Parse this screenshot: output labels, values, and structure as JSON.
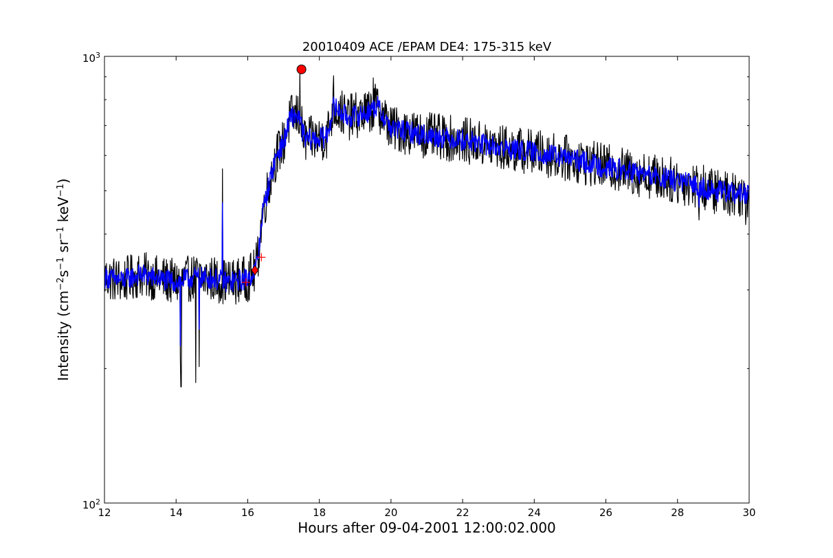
{
  "chart_data": {
    "type": "line",
    "title": "20010409 ACE /EPAM DE4: 175-315 keV",
    "xlabel": "Hours after 09-04-2001 12:00:02.000",
    "ylabel_parts": {
      "prefix": "Intensity (cm",
      "exp1": "−2",
      "mid1": "s",
      "exp2": "−1",
      "mid2": " sr",
      "exp3": "−1",
      "mid3": " keV",
      "exp4": "−1",
      "suffix": ")"
    },
    "xlim": [
      12,
      30
    ],
    "ylim": [
      100,
      1000
    ],
    "yscale": "log",
    "x_ticks": [
      12,
      14,
      16,
      18,
      20,
      22,
      24,
      26,
      28,
      30
    ],
    "x_tick_labels": [
      "12",
      "14",
      "16",
      "18",
      "20",
      "22",
      "24",
      "26",
      "28",
      "30"
    ],
    "y_tick_labels": [
      {
        "value": 1000,
        "base": "10",
        "exp": "3"
      },
      {
        "value": 100,
        "base": "10",
        "exp": "2"
      }
    ],
    "series": [
      {
        "color": "#000000",
        "noise": 0.075,
        "points": [
          [
            12.0,
            320
          ],
          [
            12.5,
            315
          ],
          [
            13.0,
            325
          ],
          [
            13.5,
            318
          ],
          [
            14.0,
            312
          ],
          [
            14.5,
            320
          ],
          [
            15.0,
            318
          ],
          [
            15.5,
            312
          ],
          [
            16.0,
            318
          ],
          [
            16.2,
            330
          ],
          [
            16.3,
            360
          ],
          [
            16.4,
            440
          ],
          [
            16.6,
            520
          ],
          [
            16.8,
            600
          ],
          [
            17.0,
            640
          ],
          [
            17.2,
            730
          ],
          [
            17.4,
            740
          ],
          [
            17.6,
            650
          ],
          [
            18.0,
            655
          ],
          [
            18.2,
            660
          ],
          [
            18.4,
            770
          ],
          [
            18.8,
            730
          ],
          [
            19.3,
            745
          ],
          [
            19.6,
            775
          ],
          [
            20.0,
            690
          ],
          [
            21.0,
            665
          ],
          [
            22.0,
            650
          ],
          [
            23.0,
            625
          ],
          [
            24.0,
            610
          ],
          [
            25.0,
            590
          ],
          [
            26.0,
            565
          ],
          [
            27.0,
            545
          ],
          [
            28.0,
            525
          ],
          [
            28.5,
            515
          ],
          [
            29.0,
            500
          ],
          [
            30.0,
            490
          ]
        ],
        "spikes": [
          {
            "x": 14.12,
            "y": 210
          },
          {
            "x": 14.14,
            "y": 182
          },
          {
            "x": 14.55,
            "y": 186
          },
          {
            "x": 14.65,
            "y": 202
          },
          {
            "x": 15.3,
            "y": 560
          },
          {
            "x": 17.45,
            "y": 930
          },
          {
            "x": 18.4,
            "y": 905
          },
          {
            "x": 19.5,
            "y": 895
          },
          {
            "x": 28.6,
            "y": 430
          },
          {
            "x": 29.9,
            "y": 420
          }
        ]
      },
      {
        "color": "#0000ff",
        "noise": 0.035,
        "points": [
          [
            12.0,
            320
          ],
          [
            12.5,
            315
          ],
          [
            13.0,
            325
          ],
          [
            13.5,
            318
          ],
          [
            14.0,
            312
          ],
          [
            14.5,
            320
          ],
          [
            15.0,
            318
          ],
          [
            15.5,
            312
          ],
          [
            16.0,
            318
          ],
          [
            16.2,
            330
          ],
          [
            16.3,
            360
          ],
          [
            16.4,
            440
          ],
          [
            16.6,
            520
          ],
          [
            16.8,
            600
          ],
          [
            17.0,
            640
          ],
          [
            17.2,
            730
          ],
          [
            17.4,
            740
          ],
          [
            17.6,
            650
          ],
          [
            18.0,
            655
          ],
          [
            18.2,
            660
          ],
          [
            18.4,
            770
          ],
          [
            18.8,
            730
          ],
          [
            19.3,
            745
          ],
          [
            19.6,
            775
          ],
          [
            20.0,
            690
          ],
          [
            21.0,
            665
          ],
          [
            22.0,
            650
          ],
          [
            23.0,
            625
          ],
          [
            24.0,
            610
          ],
          [
            25.0,
            590
          ],
          [
            26.0,
            565
          ],
          [
            27.0,
            545
          ],
          [
            28.0,
            525
          ],
          [
            28.5,
            515
          ],
          [
            29.0,
            500
          ],
          [
            30.0,
            490
          ]
        ],
        "spikes": [
          {
            "x": 14.12,
            "y": 225
          },
          {
            "x": 14.65,
            "y": 245
          },
          {
            "x": 15.3,
            "y": 470
          },
          {
            "x": 28.6,
            "y": 460
          }
        ]
      }
    ],
    "markers": [
      {
        "type": "circle",
        "x": 17.5,
        "y": 935,
        "color": "#ff0000"
      },
      {
        "type": "diamond",
        "x": 16.2,
        "y": 332,
        "color": "#ff0000"
      },
      {
        "type": "plus",
        "x": 16.38,
        "y": 355,
        "color": "#ff0000"
      },
      {
        "type": "plus",
        "x": 15.95,
        "y": 312,
        "color": "#ff0000"
      }
    ]
  }
}
